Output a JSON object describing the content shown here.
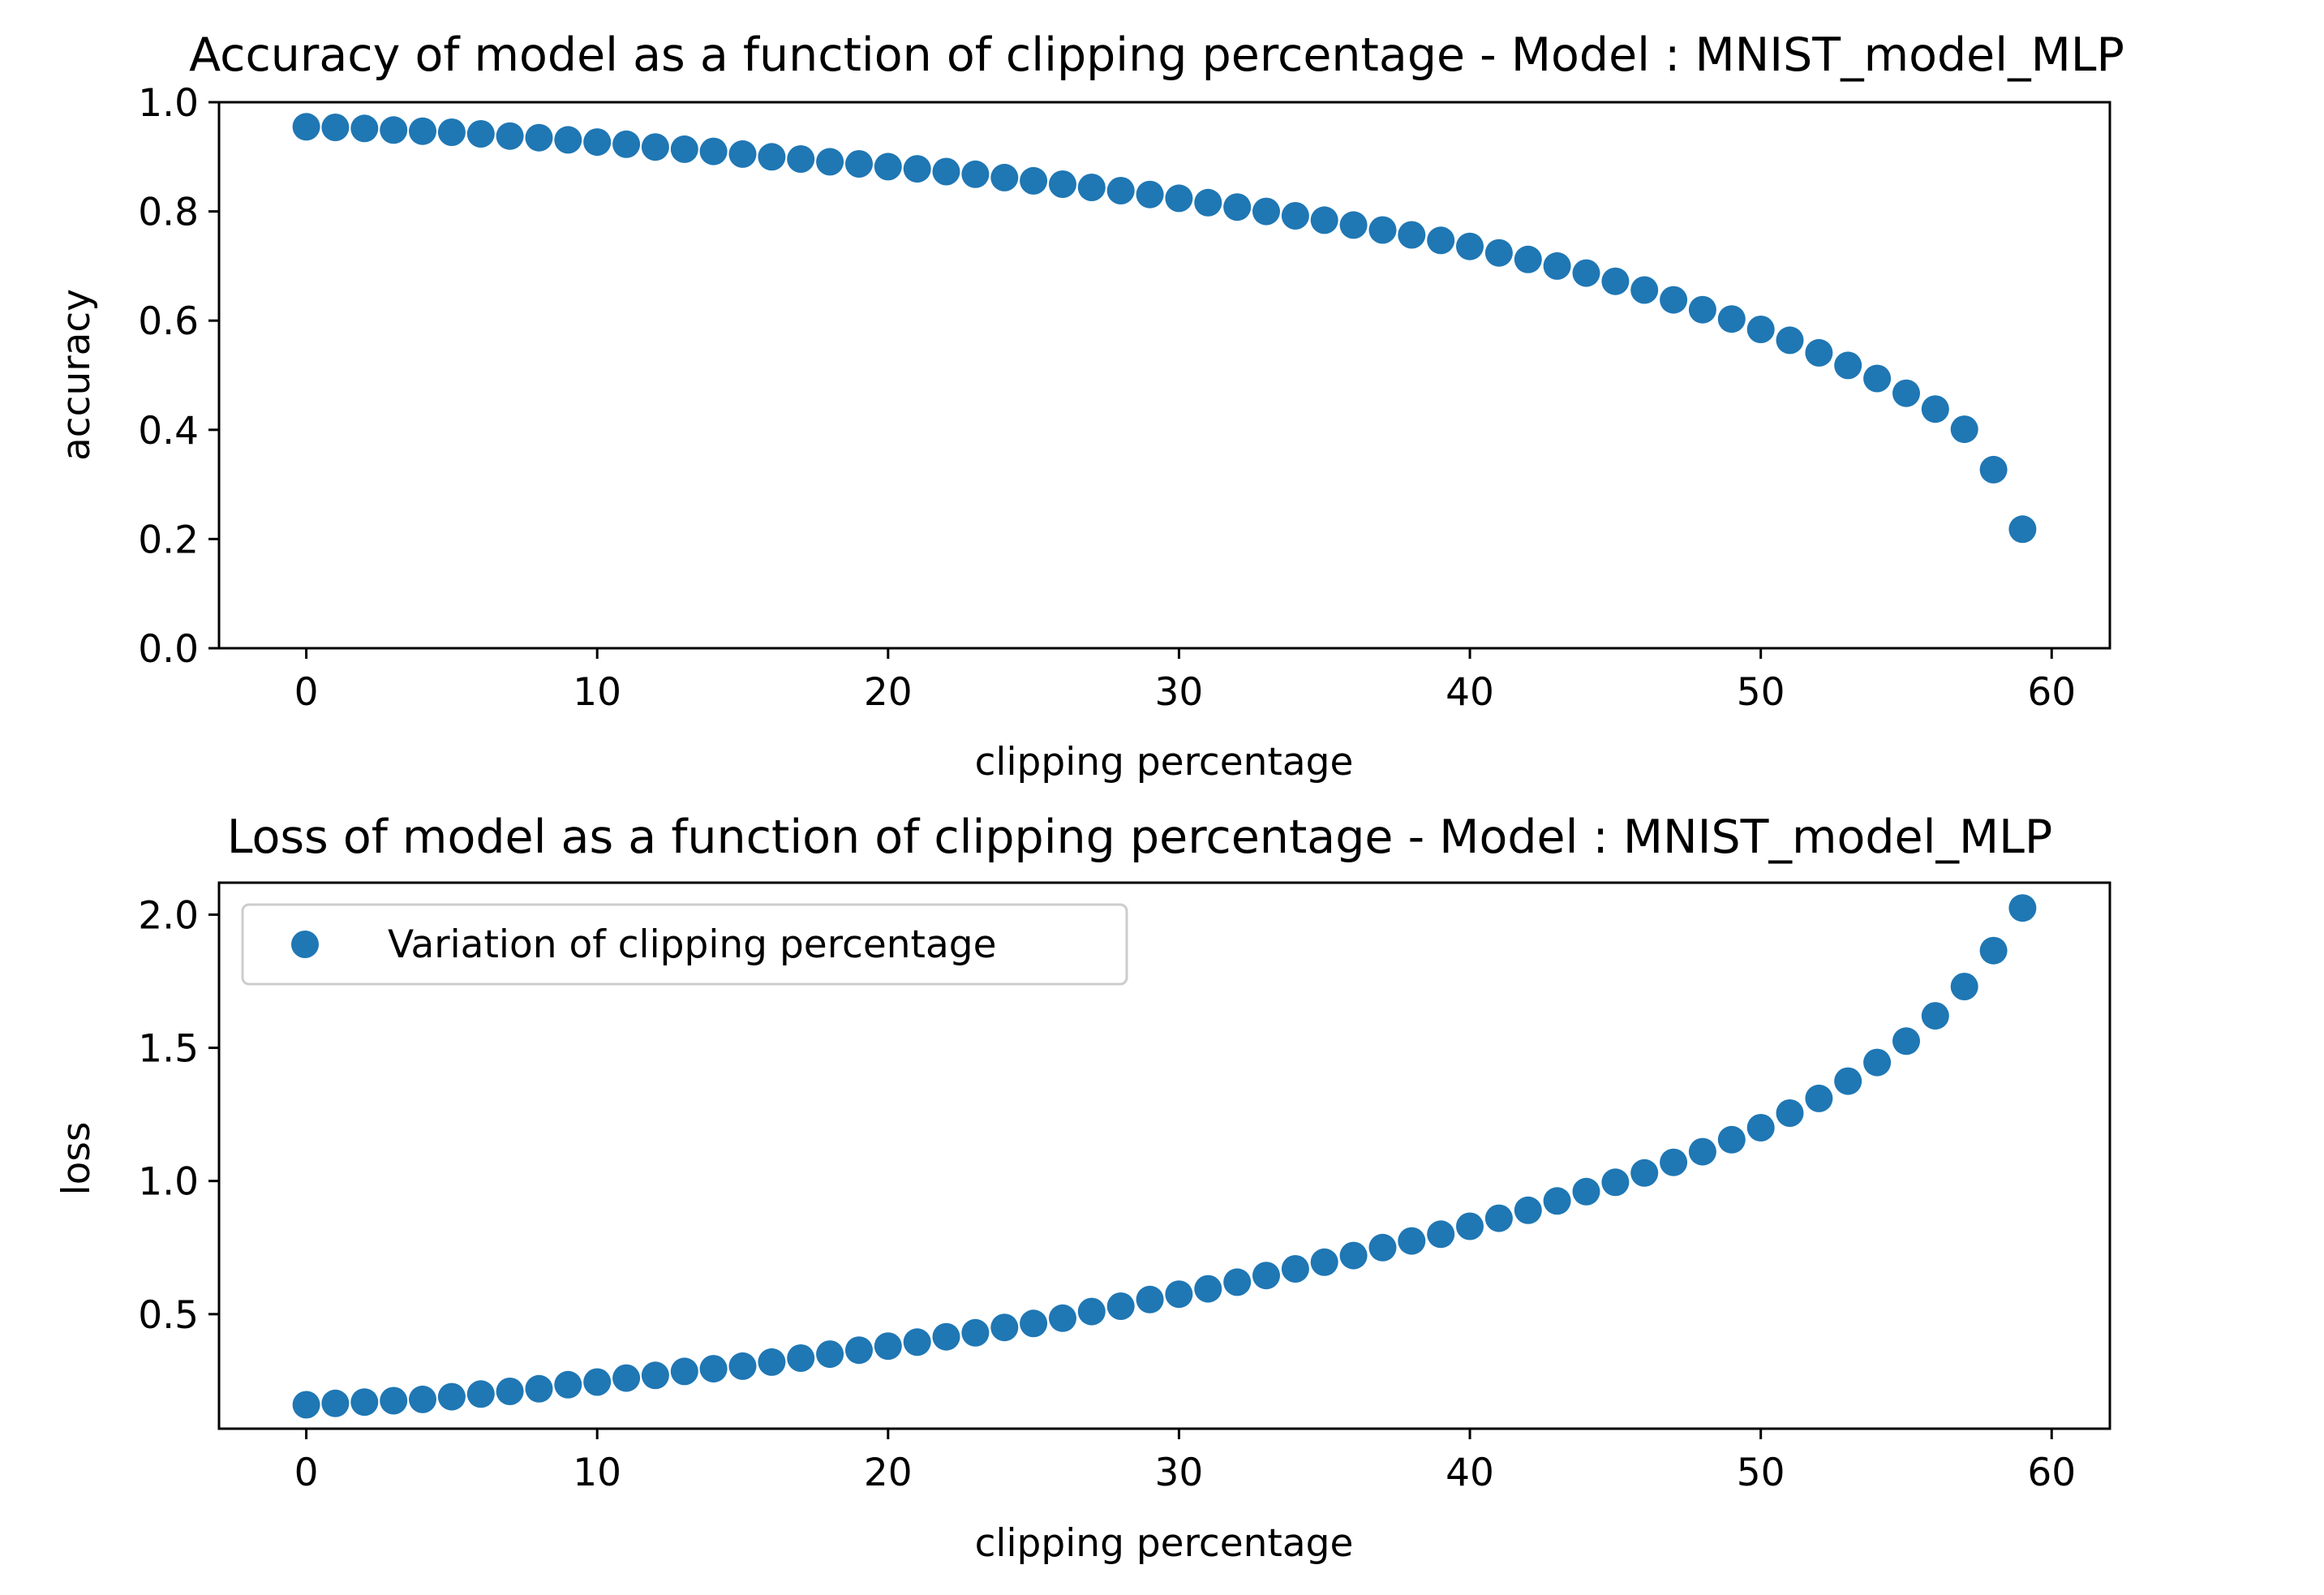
{
  "colors": {
    "marker": "#1f77b4",
    "axis": "#000000",
    "legend_border": "#cccccc",
    "background": "#ffffff"
  },
  "chart_data": [
    {
      "type": "scatter",
      "title": "Accuracy of model as a function of clipping percentage - Model : MNIST_model_MLP",
      "xlabel": "clipping percentage",
      "ylabel": "accuracy",
      "xlim": [
        -3,
        62
      ],
      "ylim": [
        0.0,
        1.0
      ],
      "xticks": [
        0,
        10,
        20,
        30,
        40,
        50,
        60
      ],
      "xtick_labels": [
        "0",
        "10",
        "20",
        "30",
        "40",
        "50",
        "60"
      ],
      "yticks": [
        0.0,
        0.2,
        0.4,
        0.6,
        0.8,
        1.0
      ],
      "ytick_labels": [
        "0.0",
        "0.2",
        "0.4",
        "0.6",
        "0.8",
        "1.0"
      ],
      "grid": false,
      "legend": null,
      "series": [
        {
          "marker": "o",
          "x": [
            0,
            1,
            2,
            3,
            4,
            5,
            6,
            7,
            8,
            9,
            10,
            11,
            12,
            13,
            14,
            15,
            16,
            17,
            18,
            19,
            20,
            21,
            22,
            23,
            24,
            25,
            26,
            27,
            28,
            29,
            30,
            31,
            32,
            33,
            34,
            35,
            36,
            37,
            38,
            39,
            40,
            41,
            42,
            43,
            44,
            45,
            46,
            47,
            48,
            49,
            50,
            51,
            52,
            53,
            54,
            55,
            56,
            57,
            58,
            59
          ],
          "y": [
            0.955,
            0.954,
            0.952,
            0.949,
            0.947,
            0.945,
            0.942,
            0.938,
            0.935,
            0.931,
            0.927,
            0.923,
            0.918,
            0.914,
            0.91,
            0.905,
            0.9,
            0.896,
            0.891,
            0.887,
            0.882,
            0.878,
            0.873,
            0.868,
            0.862,
            0.856,
            0.85,
            0.844,
            0.838,
            0.831,
            0.824,
            0.816,
            0.808,
            0.8,
            0.792,
            0.784,
            0.775,
            0.766,
            0.757,
            0.747,
            0.736,
            0.724,
            0.712,
            0.7,
            0.687,
            0.672,
            0.656,
            0.638,
            0.62,
            0.603,
            0.584,
            0.564,
            0.541,
            0.518,
            0.494,
            0.467,
            0.438,
            0.401,
            0.327,
            0.218
          ]
        }
      ]
    },
    {
      "type": "scatter",
      "title": "Loss of model as a function of clipping percentage - Model : MNIST_model_MLP",
      "xlabel": "clipping percentage",
      "ylabel": "loss",
      "xlim": [
        -3,
        62
      ],
      "ylim": [
        0.07,
        2.12
      ],
      "xticks": [
        0,
        10,
        20,
        30,
        40,
        50,
        60
      ],
      "xtick_labels": [
        "0",
        "10",
        "20",
        "30",
        "40",
        "50",
        "60"
      ],
      "yticks": [
        0.5,
        1.0,
        1.5,
        2.0
      ],
      "ytick_labels": [
        "0.5",
        "1.0",
        "1.5",
        "2.0"
      ],
      "grid": false,
      "legend": "upper left",
      "series": [
        {
          "name": "Variation of clipping percentage",
          "marker": "o",
          "x": [
            0,
            1,
            2,
            3,
            4,
            5,
            6,
            7,
            8,
            9,
            10,
            11,
            12,
            13,
            14,
            15,
            16,
            17,
            18,
            19,
            20,
            21,
            22,
            23,
            24,
            25,
            26,
            27,
            28,
            29,
            30,
            31,
            32,
            33,
            34,
            35,
            36,
            37,
            38,
            39,
            40,
            41,
            42,
            43,
            44,
            45,
            46,
            47,
            48,
            49,
            50,
            51,
            52,
            53,
            54,
            55,
            56,
            57,
            58,
            59
          ],
          "y": [
            0.16,
            0.165,
            0.17,
            0.175,
            0.18,
            0.19,
            0.2,
            0.21,
            0.22,
            0.235,
            0.245,
            0.26,
            0.27,
            0.285,
            0.295,
            0.305,
            0.32,
            0.335,
            0.35,
            0.365,
            0.38,
            0.395,
            0.415,
            0.43,
            0.45,
            0.465,
            0.485,
            0.51,
            0.53,
            0.555,
            0.575,
            0.595,
            0.62,
            0.645,
            0.67,
            0.695,
            0.72,
            0.75,
            0.775,
            0.8,
            0.83,
            0.86,
            0.89,
            0.925,
            0.96,
            0.995,
            1.03,
            1.07,
            1.11,
            1.155,
            1.2,
            1.255,
            1.31,
            1.375,
            1.445,
            1.525,
            1.62,
            1.73,
            1.865,
            2.025
          ]
        }
      ]
    }
  ]
}
